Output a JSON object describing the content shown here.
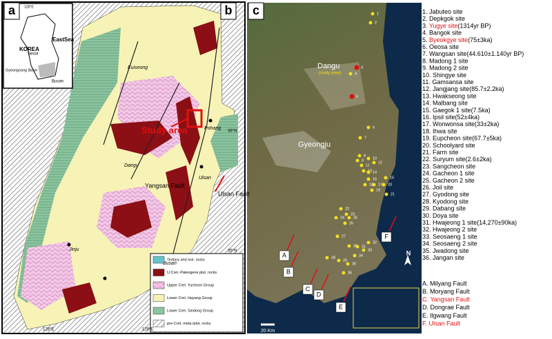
{
  "panel_a": {
    "label": "a",
    "country": "KOREA",
    "sea": "EastSea",
    "cities": [
      "Seoul",
      "Busan"
    ],
    "basin": "Gyeongsang Basin",
    "lon": "128°E"
  },
  "panel_b": {
    "label": "b",
    "places": [
      "Euiseong",
      "Pohang",
      "Daegu",
      "Jinju",
      "Ulsan",
      "Busan"
    ],
    "study_area": "Study area",
    "faults": [
      "Yangsan Fault",
      "Ulsan Fault"
    ],
    "coords": [
      "36°N",
      "35°N",
      "128°E",
      "129°E"
    ],
    "legend": [
      "Tertiary sed./vol. rocks",
      "U.Cret.-Paleogene plut. rocks",
      "Upper Cret. Yucheon Group",
      "Lower Cret. Hayang Group",
      "Lower Cret. Sindong Group",
      "pre-Cret. meta./plut. rocks"
    ]
  },
  "panel_c": {
    "label": "c",
    "places": [
      "Dangu",
      "(study area)",
      "Gyeongju"
    ],
    "scale": "20 Km",
    "north": "N",
    "fault_letters": [
      "A",
      "B",
      "C",
      "D",
      "E",
      "F"
    ],
    "markers": [
      "1",
      "2",
      "3",
      "4",
      "5",
      "6",
      "7",
      "8",
      "9",
      "10",
      "11",
      "12",
      "13",
      "14",
      "15",
      "16",
      "17",
      "18",
      "19",
      "20",
      "21",
      "22",
      "23",
      "24",
      "25",
      "26",
      "27",
      "28",
      "29",
      "30",
      "31",
      "32",
      "33",
      "34",
      "35",
      "36"
    ]
  },
  "sites": [
    {
      "no": "1.",
      "name": "Jabuteo site"
    },
    {
      "no": "2.",
      "name": "Depkgok site"
    },
    {
      "no": "3.",
      "name": "Yugye site",
      "detail": "(1314yr BP)",
      "red": true
    },
    {
      "no": "4.",
      "name": "Bangok site"
    },
    {
      "no": "5.",
      "name": "Byeokgye site",
      "detail": "(75±3ka)",
      "red": true
    },
    {
      "no": "6.",
      "name": "Oeosa site"
    },
    {
      "no": "7.",
      "name": "Wangsan site(44.610±1.140yr BP)"
    },
    {
      "no": "8.",
      "name": "Madong 1 site"
    },
    {
      "no": "9.",
      "name": "Madong 2 site"
    },
    {
      "no": "10.",
      "name": "Shingye site"
    },
    {
      "no": "11.",
      "name": "Gamsansa site"
    },
    {
      "no": "12.",
      "name": "Jangjang site(85.7±2.2ka)"
    },
    {
      "no": "13.",
      "name": "Hwakseong site"
    },
    {
      "no": "14.",
      "name": "Malbang site"
    },
    {
      "no": "15.",
      "name": "Gaegok 1 site(7.5ka)"
    },
    {
      "no": "16.",
      "name": "Ipsil site(52±4ka)"
    },
    {
      "no": "17.",
      "name": "Wonwonsa site(33±2ka)"
    },
    {
      "no": "18.",
      "name": "Ihwa site"
    },
    {
      "no": "19.",
      "name": "Eupcheon site(67.7±5ka)"
    },
    {
      "no": "20.",
      "name": "Schoolyard site"
    },
    {
      "no": "21.",
      "name": "Farm site"
    },
    {
      "no": "22.",
      "name": "Suryum site(2.6±2ka)"
    },
    {
      "no": "23.",
      "name": "Sangcheon site"
    },
    {
      "no": "24.",
      "name": "Gacheon 1 site"
    },
    {
      "no": "25.",
      "name": "Gacheon 2 site"
    },
    {
      "no": "26.",
      "name": "Joil site"
    },
    {
      "no": "27.",
      "name": "Gyodong site"
    },
    {
      "no": "28.",
      "name": "Kyodong site"
    },
    {
      "no": "29.",
      "name": "Dabang site"
    },
    {
      "no": "30.",
      "name": "Doya site"
    },
    {
      "no": "31.",
      "name": "Hwajeong 1 site(14,270±90ka)"
    },
    {
      "no": "32.",
      "name": "Hwajeong 2 site"
    },
    {
      "no": "33.",
      "name": "Seosaeng 1 site"
    },
    {
      "no": "34.",
      "name": "Seosaeng 2 site"
    },
    {
      "no": "35.",
      "name": "Jwadong site"
    },
    {
      "no": "36.",
      "name": "Jangan site"
    }
  ],
  "faults": [
    {
      "name": "A. Milyang Fault"
    },
    {
      "name": "B. Moryang Fault"
    },
    {
      "name": "C. Yangsan Fault",
      "red": true
    },
    {
      "name": "D. Dongrae Fault"
    },
    {
      "name": "E. Ilgwang Fault"
    },
    {
      "name": "F. Ulsan Fault",
      "red": true
    }
  ]
}
